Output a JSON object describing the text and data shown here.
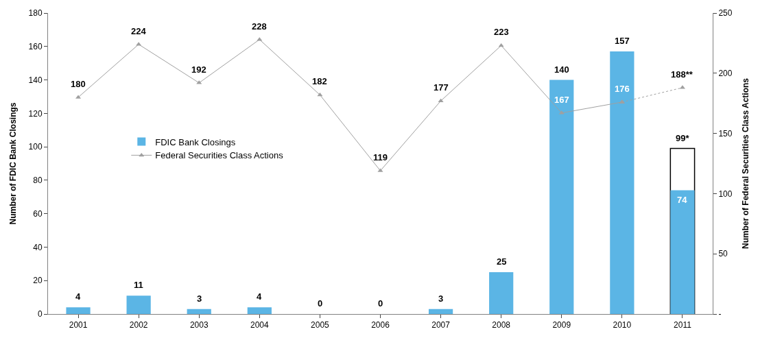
{
  "chart_data": {
    "type": "bar",
    "categories": [
      "2001",
      "2002",
      "2003",
      "2004",
      "2005",
      "2006",
      "2007",
      "2008",
      "2009",
      "2010",
      "2011"
    ],
    "series": [
      {
        "color": "#ffffff",
        "values": [
          null,
          null,
          null,
          null,
          null,
          null,
          null,
          null,
          null,
          null,
          99
        ],
        "value_labels": [
          null,
          null,
          null,
          null,
          null,
          null,
          null,
          null,
          null,
          null,
          "99*"
        ]
      },
      {
        "name": "FDIC Bank Closings",
        "color": "#5bb5e5",
        "values": [
          4,
          11,
          3,
          4,
          0,
          0,
          3,
          25,
          140,
          157,
          74
        ],
        "value_labels": [
          "4",
          "11",
          "3",
          "4",
          "0",
          "0",
          "3",
          "25",
          "140",
          "157",
          "74"
        ]
      },
      {
        "name": "Federal Securities Class Actions",
        "type": "line",
        "axis": "y2",
        "color": "#a0a0a0",
        "marker": "triangle",
        "line_style": "solid",
        "values": [
          180,
          224,
          192,
          228,
          182,
          119,
          177,
          223,
          167,
          176,
          null
        ],
        "value_labels": [
          "180",
          "224",
          "192",
          "228",
          "182",
          "119",
          "177",
          "223",
          "167",
          "176",
          null
        ]
      },
      {
        "type": "line",
        "axis": "y2",
        "color": "#a0a0a0",
        "marker": "triangle",
        "line_style": "dotted",
        "values": [
          null,
          null,
          null,
          null,
          null,
          null,
          null,
          null,
          null,
          176,
          188
        ],
        "value_labels": [
          null,
          null,
          null,
          null,
          null,
          null,
          null,
          null,
          null,
          null,
          "188**"
        ]
      }
    ],
    "ylabel": "Number of FDIC Bank Closings",
    "y2label": "Number of Federal Securities Class Actions",
    "ylim": [
      0,
      180
    ],
    "yticks": [
      0,
      20,
      40,
      60,
      80,
      100,
      120,
      140,
      160,
      180
    ],
    "y2lim": [
      0,
      250
    ],
    "y2ticks": [
      {
        "value": 0,
        "label": "-"
      },
      50,
      100,
      150,
      200,
      250
    ],
    "legend": "left"
  }
}
